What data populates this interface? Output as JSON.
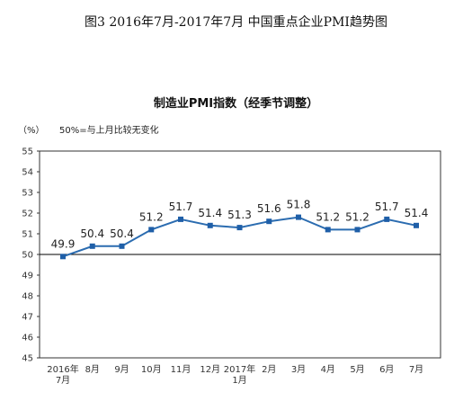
{
  "figure_title": "图3   2016年7月-2017年7月   中国重点企业PMI趋势图",
  "chart_data": {
    "type": "line",
    "title": "制造业PMI指数（经季节调整）",
    "ylabel": "（%）",
    "annotation": "50%=与上月比较无变化",
    "categories": [
      [
        "2016年",
        "7月"
      ],
      [
        "8月"
      ],
      [
        "9月"
      ],
      [
        "10月"
      ],
      [
        "11月"
      ],
      [
        "12月"
      ],
      [
        "2017年",
        "1月"
      ],
      [
        "2月"
      ],
      [
        "3月"
      ],
      [
        "4月"
      ],
      [
        "5月"
      ],
      [
        "6月"
      ],
      [
        "7月"
      ]
    ],
    "series": [
      {
        "values": [
          49.9,
          50.4,
          50.4,
          51.2,
          51.7,
          51.4,
          51.3,
          51.6,
          51.8,
          51.2,
          51.2,
          51.7,
          51.4
        ]
      }
    ],
    "data_labels": [
      "49.9",
      "50.4",
      "50.4",
      "51.2",
      "51.7",
      "51.4",
      "51.3",
      "51.6",
      "51.8",
      "51.2",
      "51.2",
      "51.7",
      "51.4"
    ],
    "ylim": [
      45,
      55
    ],
    "yticks": [
      45,
      46,
      47,
      48,
      49,
      50,
      51,
      52,
      53,
      54,
      55
    ],
    "reference_line": 50,
    "grid": false,
    "colors": {
      "line": "#2b6cb0",
      "marker": "#1f5fa8",
      "axis": "#333333"
    }
  }
}
